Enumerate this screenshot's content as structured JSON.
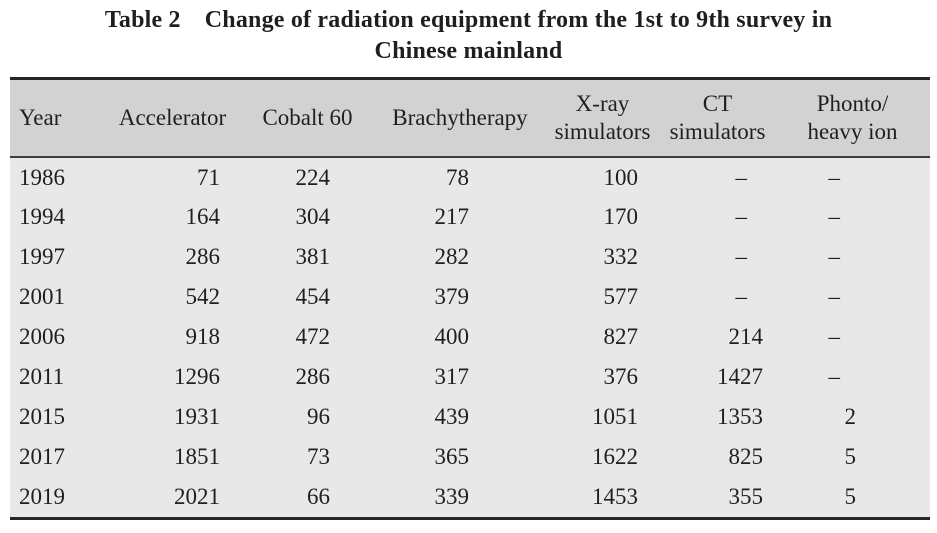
{
  "caption": {
    "label": "Table 2",
    "line1": "Change of radiation equipment from the 1st to 9th survey in",
    "line2": "Chinese mainland"
  },
  "table": {
    "columns": [
      {
        "label": "Year"
      },
      {
        "label": "Accelerator"
      },
      {
        "label": "Cobalt 60"
      },
      {
        "label": "Brachytherapy"
      },
      {
        "label": "X-ray simulators",
        "line1": "X-ray",
        "line2": "simulators"
      },
      {
        "label": "CT simulators",
        "line1": "CT",
        "line2": "simulators"
      },
      {
        "label": "Phonto/heavy ion",
        "line1": "Phonto/",
        "line2": "heavy ion"
      }
    ],
    "no_data_symbol": "–",
    "rows": [
      [
        "1986",
        "71",
        "224",
        "78",
        "100",
        "–",
        "–"
      ],
      [
        "1994",
        "164",
        "304",
        "217",
        "170",
        "–",
        "–"
      ],
      [
        "1997",
        "286",
        "381",
        "282",
        "332",
        "–",
        "–"
      ],
      [
        "2001",
        "542",
        "454",
        "379",
        "577",
        "–",
        "–"
      ],
      [
        "2006",
        "918",
        "472",
        "400",
        "827",
        "214",
        "–"
      ],
      [
        "2011",
        "1296",
        "286",
        "317",
        "376",
        "1427",
        "–"
      ],
      [
        "2015",
        "1931",
        "96",
        "439",
        "1051",
        "1353",
        "2"
      ],
      [
        "2017",
        "1851",
        "73",
        "365",
        "1622",
        "825",
        "5"
      ],
      [
        "2019",
        "2021",
        "66",
        "339",
        "1453",
        "355",
        "5"
      ]
    ]
  },
  "colors": {
    "header_bg": "#d2d2d2",
    "body_bg": "#e8e8e8",
    "rule": "#262626",
    "text": "#1f1f1f"
  }
}
